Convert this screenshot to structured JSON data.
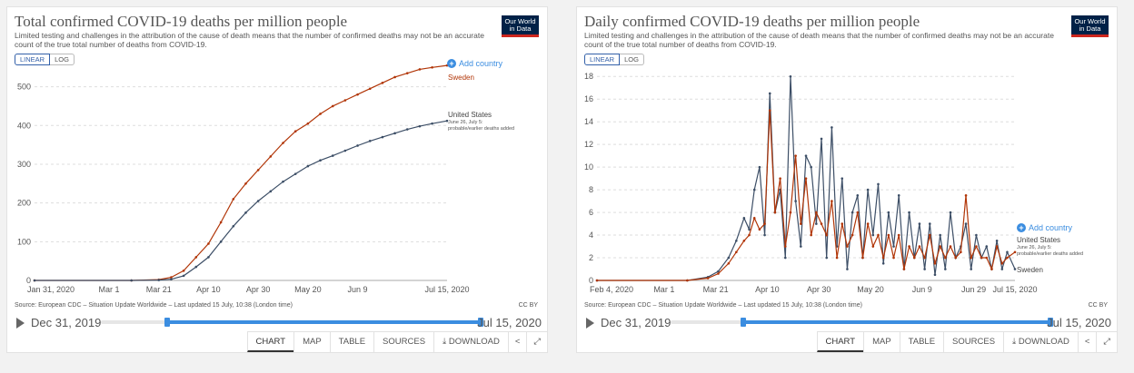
{
  "left": {
    "title": "Total confirmed COVID-19 deaths per million people",
    "subtitle": "Limited testing and challenges in the attribution of the cause of death means that the number of confirmed deaths may not be an accurate count of the true total number of deaths from COVID-19.",
    "logo_line1": "Our World",
    "logo_line2": "in Data",
    "scale_linear": "LINEAR",
    "scale_log": "LOG",
    "add_country": "Add country",
    "source": "Source: European CDC – Situation Update Worldwide – Last updated 15 July, 10:38 (London time)",
    "license": "CC BY",
    "timeline_start": "Dec 31, 2019",
    "timeline_end": "Jul 15, 2020",
    "tabs": [
      "CHART",
      "MAP",
      "TABLE",
      "SOURCES",
      "DOWNLOAD"
    ]
  },
  "right": {
    "title": "Daily confirmed COVID-19 deaths per million people",
    "subtitle": "Limited testing and challenges in the attribution of the cause of death means that the number of confirmed deaths may not be an accurate count of the true total number of deaths from COVID-19.",
    "logo_line1": "Our World",
    "logo_line2": "in Data",
    "scale_linear": "LINEAR",
    "scale_log": "LOG",
    "add_country": "Add country",
    "source": "Source: European CDC – Situation Update Worldwide – Last updated 15 July, 10:38 (London time)",
    "license": "CC BY",
    "timeline_start": "Dec 31, 2019",
    "timeline_end": "Jul 15, 2020",
    "tabs": [
      "CHART",
      "MAP",
      "TABLE",
      "SOURCES",
      "DOWNLOAD"
    ]
  },
  "colors": {
    "sweden": "#b13507",
    "united_states": "#3c4e66",
    "accent": "#3b8de0",
    "logo_bg": "#002147",
    "logo_red": "#ce261e"
  },
  "icons": [
    "plus-circle-icon",
    "play-icon",
    "download-icon",
    "share-icon",
    "expand-icon"
  ],
  "chart_data": [
    {
      "type": "line",
      "title": "Total confirmed COVID-19 deaths per million people",
      "x_ticks": [
        "Jan 31, 2020",
        "Mar 1",
        "Mar 21",
        "Apr 10",
        "Apr 30",
        "May 20",
        "Jun 9",
        "Jul 15, 2020"
      ],
      "y_ticks": [
        0,
        100,
        200,
        300,
        400,
        500
      ],
      "ylim": [
        0,
        560
      ],
      "x_domain": [
        "2020-01-31",
        "2020-07-15"
      ],
      "grid": true,
      "annotation": "June 26, July 5: probable/earlier deaths added",
      "series": [
        {
          "name": "Sweden",
          "color": "#b13507",
          "x": [
            "2020-01-31",
            "2020-03-10",
            "2020-03-21",
            "2020-03-26",
            "2020-03-31",
            "2020-04-05",
            "2020-04-10",
            "2020-04-15",
            "2020-04-20",
            "2020-04-25",
            "2020-04-30",
            "2020-05-05",
            "2020-05-10",
            "2020-05-15",
            "2020-05-20",
            "2020-05-25",
            "2020-05-30",
            "2020-06-04",
            "2020-06-09",
            "2020-06-14",
            "2020-06-19",
            "2020-06-24",
            "2020-06-29",
            "2020-07-04",
            "2020-07-09",
            "2020-07-15"
          ],
          "y": [
            0,
            0,
            2,
            8,
            25,
            60,
            95,
            150,
            210,
            250,
            285,
            320,
            355,
            385,
            405,
            430,
            450,
            465,
            480,
            495,
            510,
            525,
            535,
            545,
            550,
            555
          ]
        },
        {
          "name": "United States",
          "color": "#3c4e66",
          "x": [
            "2020-01-31",
            "2020-03-10",
            "2020-03-21",
            "2020-03-26",
            "2020-03-31",
            "2020-04-05",
            "2020-04-10",
            "2020-04-15",
            "2020-04-20",
            "2020-04-25",
            "2020-04-30",
            "2020-05-05",
            "2020-05-10",
            "2020-05-15",
            "2020-05-20",
            "2020-05-25",
            "2020-05-30",
            "2020-06-04",
            "2020-06-09",
            "2020-06-14",
            "2020-06-19",
            "2020-06-24",
            "2020-06-29",
            "2020-07-04",
            "2020-07-09",
            "2020-07-15"
          ],
          "y": [
            0,
            0,
            1,
            3,
            12,
            35,
            60,
            100,
            140,
            175,
            205,
            230,
            255,
            275,
            295,
            310,
            322,
            335,
            348,
            360,
            370,
            380,
            390,
            398,
            405,
            412
          ]
        }
      ]
    },
    {
      "type": "line",
      "title": "Daily confirmed COVID-19 deaths per million people",
      "x_ticks": [
        "Feb 4, 2020",
        "Mar 1",
        "Mar 21",
        "Apr 10",
        "Apr 30",
        "May 20",
        "Jun 9",
        "Jun 29",
        "Jul 15, 2020"
      ],
      "y_ticks": [
        0,
        2,
        4,
        6,
        8,
        10,
        12,
        14,
        16,
        18
      ],
      "ylim": [
        0,
        18.5
      ],
      "x_domain": [
        "2020-02-04",
        "2020-07-15"
      ],
      "grid": true,
      "annotation": "June 26, July 5: probable/earlier deaths added",
      "series": [
        {
          "name": "United States",
          "color": "#3c4e66",
          "x": [
            "2020-02-04",
            "2020-03-10",
            "2020-03-18",
            "2020-03-22",
            "2020-03-26",
            "2020-03-29",
            "2020-04-01",
            "2020-04-03",
            "2020-04-05",
            "2020-04-07",
            "2020-04-09",
            "2020-04-11",
            "2020-04-13",
            "2020-04-15",
            "2020-04-17",
            "2020-04-19",
            "2020-04-21",
            "2020-04-23",
            "2020-04-25",
            "2020-04-27",
            "2020-04-29",
            "2020-05-01",
            "2020-05-03",
            "2020-05-05",
            "2020-05-07",
            "2020-05-09",
            "2020-05-11",
            "2020-05-13",
            "2020-05-15",
            "2020-05-17",
            "2020-05-19",
            "2020-05-21",
            "2020-05-23",
            "2020-05-25",
            "2020-05-27",
            "2020-05-29",
            "2020-05-31",
            "2020-06-02",
            "2020-06-04",
            "2020-06-06",
            "2020-06-08",
            "2020-06-10",
            "2020-06-12",
            "2020-06-14",
            "2020-06-16",
            "2020-06-18",
            "2020-06-20",
            "2020-06-22",
            "2020-06-24",
            "2020-06-26",
            "2020-06-28",
            "2020-06-30",
            "2020-07-02",
            "2020-07-04",
            "2020-07-06",
            "2020-07-08",
            "2020-07-10",
            "2020-07-12",
            "2020-07-15"
          ],
          "y": [
            0,
            0,
            0.3,
            0.8,
            2,
            3.5,
            5.5,
            4.5,
            8,
            10,
            4,
            16.5,
            6,
            8,
            2,
            18,
            7,
            3,
            11,
            10,
            5,
            12.5,
            2,
            13.5,
            3,
            9,
            1,
            6,
            7.5,
            2,
            8,
            4,
            8.5,
            1.5,
            6,
            3,
            7.5,
            1,
            6,
            2,
            5,
            1,
            5,
            0.5,
            4,
            1,
            6,
            2,
            3,
            5,
            1,
            4,
            2,
            3,
            1,
            3.5,
            1,
            2.5,
            1
          ]
        },
        {
          "name": "Sweden",
          "color": "#b13507",
          "x": [
            "2020-02-04",
            "2020-03-10",
            "2020-03-18",
            "2020-03-22",
            "2020-03-26",
            "2020-03-29",
            "2020-04-01",
            "2020-04-03",
            "2020-04-05",
            "2020-04-07",
            "2020-04-09",
            "2020-04-11",
            "2020-04-13",
            "2020-04-15",
            "2020-04-17",
            "2020-04-19",
            "2020-04-21",
            "2020-04-23",
            "2020-04-25",
            "2020-04-27",
            "2020-04-29",
            "2020-05-01",
            "2020-05-03",
            "2020-05-05",
            "2020-05-07",
            "2020-05-09",
            "2020-05-11",
            "2020-05-13",
            "2020-05-15",
            "2020-05-17",
            "2020-05-19",
            "2020-05-21",
            "2020-05-23",
            "2020-05-25",
            "2020-05-27",
            "2020-05-29",
            "2020-05-31",
            "2020-06-02",
            "2020-06-04",
            "2020-06-06",
            "2020-06-08",
            "2020-06-10",
            "2020-06-12",
            "2020-06-14",
            "2020-06-16",
            "2020-06-18",
            "2020-06-20",
            "2020-06-22",
            "2020-06-24",
            "2020-06-26",
            "2020-06-28",
            "2020-06-30",
            "2020-07-02",
            "2020-07-04",
            "2020-07-06",
            "2020-07-08",
            "2020-07-10",
            "2020-07-12",
            "2020-07-15"
          ],
          "y": [
            0,
            0,
            0.2,
            0.6,
            1.5,
            2.5,
            3.5,
            4,
            5.5,
            4.5,
            5,
            15,
            6,
            9,
            3,
            6,
            11,
            5,
            9,
            4,
            6,
            5,
            4,
            7,
            2,
            5,
            3,
            4,
            6,
            2,
            5,
            3,
            4,
            2,
            4,
            2,
            4,
            1,
            3,
            2,
            3,
            2,
            4,
            1.5,
            3,
            2,
            3,
            2,
            2.5,
            7.5,
            2,
            3,
            2,
            2,
            1,
            3,
            1.5,
            2,
            2.5
          ]
        }
      ]
    }
  ]
}
